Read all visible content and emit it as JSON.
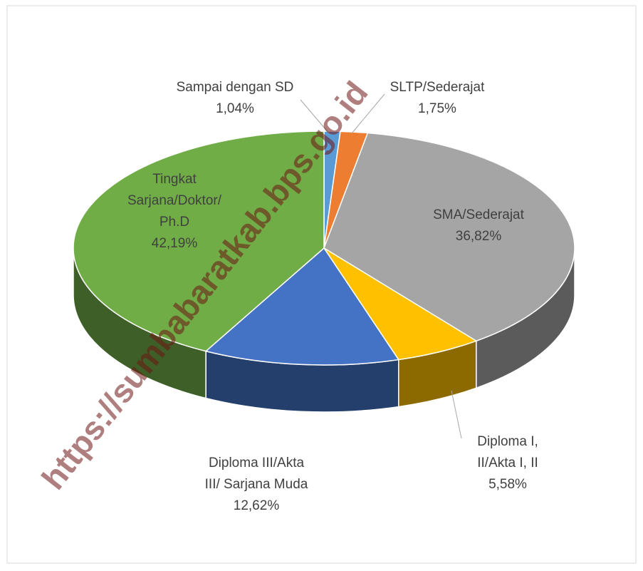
{
  "chart_data": {
    "type": "pie",
    "categories": [
      "Sampai dengan SD",
      "SLTP/Sederajat",
      "SMA/Sederajat",
      "Diploma I,\nII/Akta I, II",
      "Diploma III/Akta\nIII/ Sarjana Muda",
      "Tingkat\nSarjana/Doktor/\nPh.D"
    ],
    "values": [
      1.04,
      1.75,
      36.82,
      5.58,
      12.62,
      42.19
    ],
    "value_labels": [
      "1,04%",
      "1,75%",
      "36,82%",
      "5,58%",
      "12,62%",
      "42,19%"
    ],
    "colors": [
      "#5b9bd5",
      "#ed7d31",
      "#a5a5a5",
      "#ffc000",
      "#4472c4",
      "#70ad47"
    ],
    "watermark": "https://sumbabaratkab.bps.go.id"
  }
}
